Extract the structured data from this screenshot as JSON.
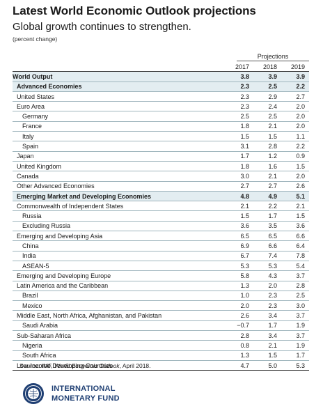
{
  "title": "Latest World Economic Outlook projections",
  "subtitle": "Global growth continues to strengthen.",
  "unit_note": "(percent change)",
  "projections_label": "Projections",
  "years": [
    "2017",
    "2018",
    "2019"
  ],
  "rows": [
    {
      "name": "World Output",
      "values": [
        "3.8",
        "3.9",
        "3.9"
      ]
    },
    {
      "name": "Advanced Economies",
      "values": [
        "2.3",
        "2.5",
        "2.2"
      ]
    },
    {
      "name": "United States",
      "values": [
        "2.3",
        "2.9",
        "2.7"
      ]
    },
    {
      "name": "Euro Area",
      "values": [
        "2.3",
        "2.4",
        "2.0"
      ]
    },
    {
      "name": "Germany",
      "values": [
        "2.5",
        "2.5",
        "2.0"
      ]
    },
    {
      "name": "France",
      "values": [
        "1.8",
        "2.1",
        "2.0"
      ]
    },
    {
      "name": "Italy",
      "values": [
        "1.5",
        "1.5",
        "1.1"
      ]
    },
    {
      "name": "Spain",
      "values": [
        "3.1",
        "2.8",
        "2.2"
      ]
    },
    {
      "name": "Japan",
      "values": [
        "1.7",
        "1.2",
        "0.9"
      ]
    },
    {
      "name": "United Kingdom",
      "values": [
        "1.8",
        "1.6",
        "1.5"
      ]
    },
    {
      "name": "Canada",
      "values": [
        "3.0",
        "2.1",
        "2.0"
      ]
    },
    {
      "name": "Other Advanced Economies",
      "values": [
        "2.7",
        "2.7",
        "2.6"
      ]
    },
    {
      "name": "Emerging Market and Developing Economies",
      "values": [
        "4.8",
        "4.9",
        "5.1"
      ]
    },
    {
      "name": "Commonwealth of Independent States",
      "values": [
        "2.1",
        "2.2",
        "2.1"
      ]
    },
    {
      "name": "Russia",
      "values": [
        "1.5",
        "1.7",
        "1.5"
      ]
    },
    {
      "name": "Excluding Russia",
      "values": [
        "3.6",
        "3.5",
        "3.6"
      ]
    },
    {
      "name": "Emerging and Developing Asia",
      "values": [
        "6.5",
        "6.5",
        "6.6"
      ]
    },
    {
      "name": "China",
      "values": [
        "6.9",
        "6.6",
        "6.4"
      ]
    },
    {
      "name": "India",
      "values": [
        "6.7",
        "7.4",
        "7.8"
      ]
    },
    {
      "name": "ASEAN-5",
      "values": [
        "5.3",
        "5.3",
        "5.4"
      ]
    },
    {
      "name": "Emerging and Developing Europe",
      "values": [
        "5.8",
        "4.3",
        "3.7"
      ]
    },
    {
      "name": "Latin America and the Caribbean",
      "values": [
        "1.3",
        "2.0",
        "2.8"
      ]
    },
    {
      "name": "Brazil",
      "values": [
        "1.0",
        "2.3",
        "2.5"
      ]
    },
    {
      "name": "Mexico",
      "values": [
        "2.0",
        "2.3",
        "3.0"
      ]
    },
    {
      "name": "Middle East, North Africa, Afghanistan, and Pakistan",
      "values": [
        "2.6",
        "3.4",
        "3.7"
      ]
    },
    {
      "name": "Saudi Arabia",
      "values": [
        "−0.7",
        "1.7",
        "1.9"
      ]
    },
    {
      "name": "Sub-Saharan Africa",
      "values": [
        "2.8",
        "3.4",
        "3.7"
      ]
    },
    {
      "name": "Nigeria",
      "values": [
        "0.8",
        "2.1",
        "1.9"
      ]
    },
    {
      "name": "South Africa",
      "values": [
        "1.3",
        "1.5",
        "1.7"
      ]
    },
    {
      "name": "Low-Income Developing Countries",
      "values": [
        "4.7",
        "5.0",
        "5.3"
      ]
    }
  ],
  "source": {
    "prefix": "Source: IMF, ",
    "publication": "World Economic Outlook",
    "suffix": ", April 2018."
  },
  "org": {
    "line1": "INTERNATIONAL",
    "line2": "MONETARY FUND"
  },
  "colors": {
    "org_blue": "#1f3f73",
    "row_shade": "#e3edf1"
  }
}
